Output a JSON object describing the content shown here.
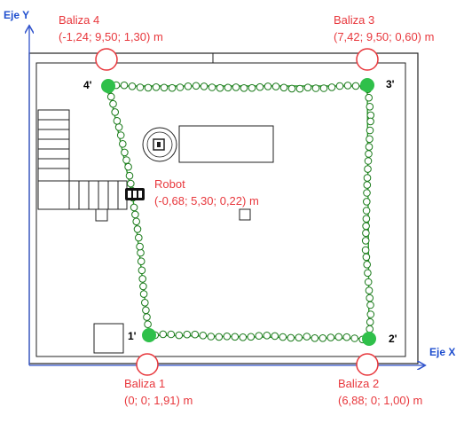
{
  "colors": {
    "beacon": "#e8383d",
    "axis": "#3355cc",
    "axis_label": "#1f4fcf",
    "track": "#1a8a1a",
    "waypoint_fill": "#32c84a",
    "corner_fill": "#2fc04a"
  },
  "axes": {
    "x_label": "Eje X",
    "y_label": "Eje Y"
  },
  "beacons": [
    {
      "name": "Baliza 1",
      "coords": "(0; 0; 1,91) m"
    },
    {
      "name": "Baliza 2",
      "coords": "(6,88; 0; 1,00) m"
    },
    {
      "name": "Baliza 3",
      "coords": "(7,42; 9,50; 0,60) m"
    },
    {
      "name": "Baliza 4",
      "coords": "(-1,24; 9,50; 1,30) m"
    }
  ],
  "robot": {
    "name": "Robot",
    "coords": "(-0,68; 5,30; 0,22) m"
  },
  "corners": [
    "1'",
    "2'",
    "3'",
    "4'"
  ]
}
